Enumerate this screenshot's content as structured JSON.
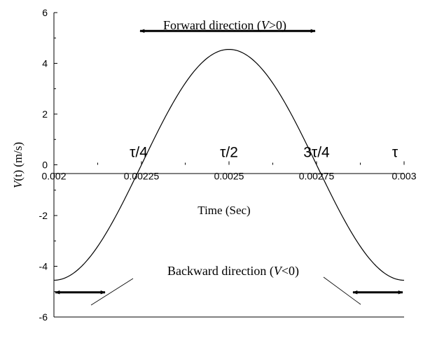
{
  "chart_data": {
    "type": "line",
    "xlabel": "Time (Sec)",
    "ylabel_main": "V",
    "ylabel_arg": "(t)",
    "ylabel_unit": "(m/s)",
    "xlim": [
      0.002,
      0.003
    ],
    "ylim": [
      -6,
      6
    ],
    "x_ticks": [
      "0.002",
      "0.00225",
      "0.0025",
      "0.00275",
      "0.003"
    ],
    "x_tick_values": [
      0.002,
      0.00225,
      0.0025,
      0.00275,
      0.003
    ],
    "y_ticks": [
      "6",
      "4",
      "2",
      "0",
      "-2",
      "-4",
      "-6"
    ],
    "y_tick_values": [
      6,
      4,
      2,
      0,
      -2,
      -4,
      -6
    ],
    "grid": false,
    "series": [
      {
        "color": "#000000",
        "amplitude": 4.55,
        "period": 0.001,
        "x": [
          0.002,
          0.00205,
          0.0021,
          0.00215,
          0.0022,
          0.00225,
          0.0023,
          0.00235,
          0.0024,
          0.00245,
          0.0025,
          0.00255,
          0.0026,
          0.00265,
          0.0027,
          0.00275,
          0.0028,
          0.00285,
          0.0029,
          0.00295,
          0.003
        ],
        "y": [
          -4.55,
          -4.33,
          -3.68,
          -2.67,
          -1.41,
          0.0,
          1.41,
          2.67,
          3.68,
          4.33,
          4.55,
          4.33,
          3.68,
          2.67,
          1.41,
          0.0,
          -1.41,
          -2.67,
          -3.68,
          -4.33,
          -4.55
        ]
      }
    ],
    "annotations": {
      "tau_labels": [
        {
          "text": "τ/4",
          "x": 0.00225
        },
        {
          "text": "τ/2",
          "x": 0.0025
        },
        {
          "text": "3τ/4",
          "x": 0.00275
        },
        {
          "text": "τ",
          "x": 0.003
        }
      ],
      "forward": {
        "text_pre": "Forward direction (",
        "text_var": "V",
        "text_post": ">0)",
        "arrow_x": [
          0.00225,
          0.00275
        ],
        "arrow_y": 5.0
      },
      "backward": {
        "text_pre": "Backward direction (",
        "text_var": "V",
        "text_post": "<0)",
        "arrows": [
          {
            "x": [
              0.002,
              0.00215
            ],
            "y": -5.0
          },
          {
            "x": [
              0.00285,
              0.003
            ],
            "y": -5.0
          }
        ]
      }
    }
  }
}
